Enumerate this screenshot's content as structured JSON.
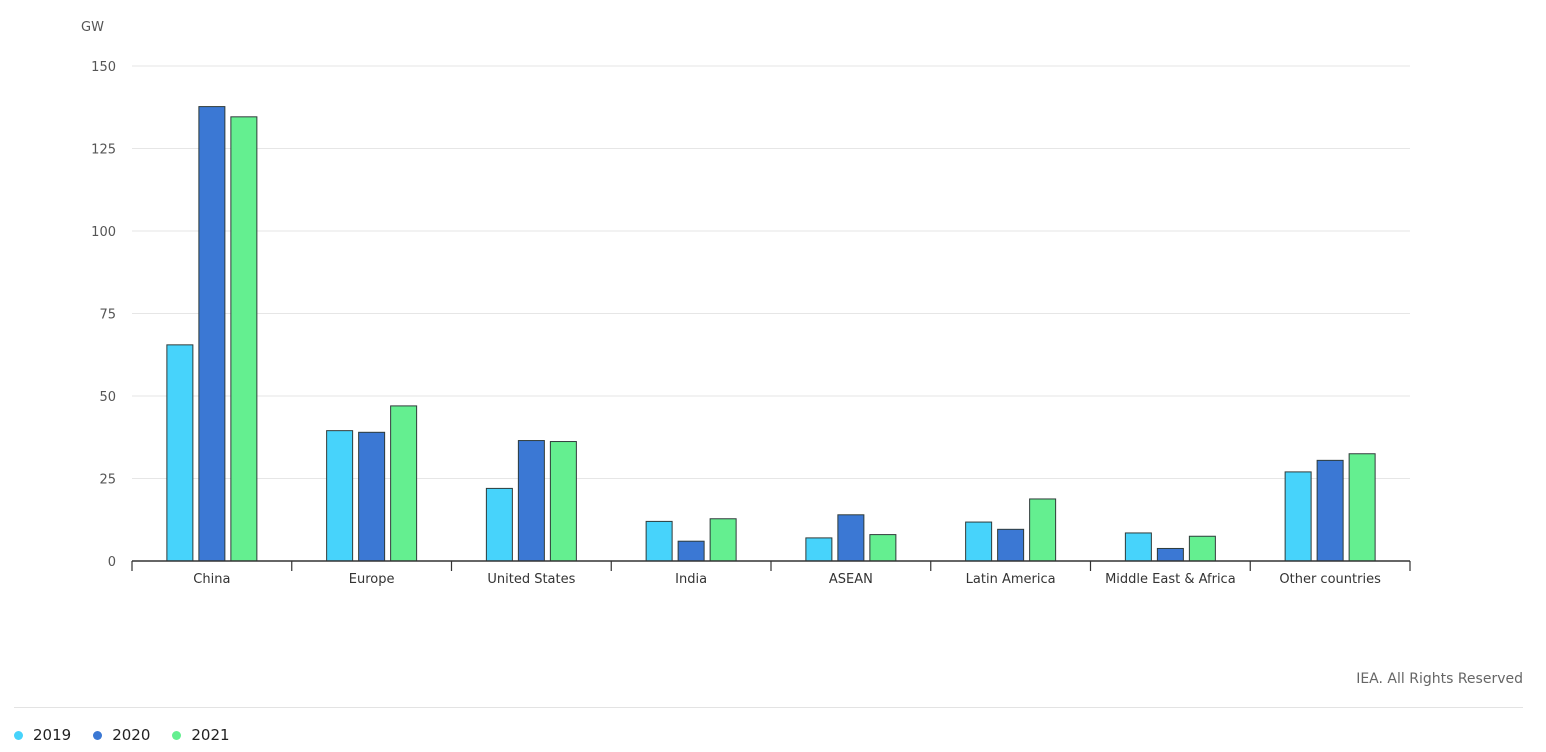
{
  "chart_data": {
    "type": "bar",
    "ylabel": "GW",
    "ylim": [
      0,
      150
    ],
    "yticks": [
      0,
      25,
      50,
      75,
      100,
      125,
      150
    ],
    "categories": [
      "China",
      "Europe",
      "United States",
      "India",
      "ASEAN",
      "Latin America",
      "Middle East & Africa",
      "Other countries"
    ],
    "series": [
      {
        "name": "2019",
        "color": "#47d3fb",
        "values": [
          65.5,
          39.5,
          22,
          12,
          7,
          11.8,
          8.5,
          27
        ]
      },
      {
        "name": "2020",
        "color": "#3b78d4",
        "values": [
          137.7,
          39,
          36.5,
          6,
          14,
          9.6,
          3.8,
          30.5
        ]
      },
      {
        "name": "2021",
        "color": "#64ef90",
        "values": [
          134.6,
          47,
          36.2,
          12.8,
          8,
          18.8,
          7.5,
          32.5
        ]
      }
    ],
    "legend_position": "bottom-left",
    "grid": true
  },
  "credit": "IEA. All Rights Reserved"
}
